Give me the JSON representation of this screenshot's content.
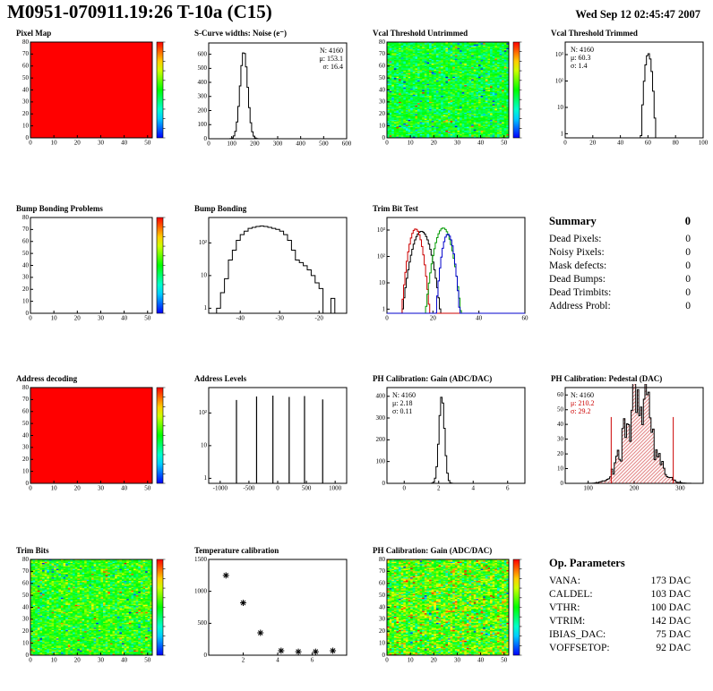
{
  "header": {
    "title": "M0951-070911.19:26 T-10a (C15)",
    "date": "Wed Sep 12 02:45:47 2007"
  },
  "chart_data": [
    {
      "title": "Pixel Map",
      "type": "heatmap",
      "fill": "uniform",
      "uniform_value": 1.0,
      "nx": 52,
      "ny": 80,
      "xlim": [
        0,
        52
      ],
      "ylim": [
        0,
        80
      ],
      "xticks": [
        0,
        10,
        20,
        30,
        40,
        50
      ],
      "yticks": [
        0,
        10,
        20,
        30,
        40,
        50,
        60,
        70,
        80
      ],
      "colorbar": true
    },
    {
      "title": "S-Curve widths: Noise (e⁻)",
      "type": "hist",
      "gauss": {
        "mu": 153.1,
        "sigma": 16.4,
        "peak": 620
      },
      "xlim": [
        0,
        600
      ],
      "xticks": [
        0,
        100,
        200,
        300,
        400,
        500,
        600
      ],
      "ylim": [
        0,
        680
      ],
      "yticks": [
        0,
        100,
        200,
        300,
        400,
        500,
        600
      ],
      "stats": {
        "pos": "right",
        "lines": [
          "N: 4160",
          "μ: 153.1",
          "σ: 16.4"
        ]
      }
    },
    {
      "title": "Vcal Threshold Untrimmed",
      "type": "heatmap",
      "fill": "noise",
      "noise_mean": 0.47,
      "noise_sd": 0.09,
      "outlier_cool": 0.035,
      "outlier_warm": 0.01,
      "nx": 52,
      "ny": 80,
      "xlim": [
        0,
        52
      ],
      "ylim": [
        0,
        80
      ],
      "xticks": [
        0,
        10,
        20,
        30,
        40,
        50
      ],
      "yticks": [
        0,
        10,
        20,
        30,
        40,
        50,
        60,
        70,
        80
      ],
      "colorbar": true
    },
    {
      "title": "Vcal Threshold Trimmed",
      "type": "hist",
      "ylog": true,
      "gauss": {
        "mu": 60.3,
        "sigma": 1.4,
        "peak": 1100
      },
      "xlim": [
        0,
        100
      ],
      "xticks": [
        0,
        20,
        40,
        60,
        80,
        100
      ],
      "ylim_log": [
        0.7,
        3000
      ],
      "yticks_log": [
        1,
        10,
        100,
        1000
      ],
      "stats": {
        "pos": "left",
        "lines": [
          "N: 4160",
          "μ: 60.3",
          "σ: 1.4"
        ]
      }
    },
    {
      "title": "Bump Bonding Problems",
      "type": "heatmap",
      "fill": "empty",
      "nx": 52,
      "ny": 80,
      "xlim": [
        0,
        52
      ],
      "ylim": [
        0,
        80
      ],
      "xticks": [
        0,
        10,
        20,
        30,
        40,
        50
      ],
      "yticks": [
        0,
        10,
        20,
        30,
        40,
        50,
        60,
        70,
        80
      ],
      "colorbar": true
    },
    {
      "title": "Bump Bonding",
      "type": "hist",
      "ylog": true,
      "bins_start": -46,
      "bin_width": 1,
      "counts": [
        1,
        3,
        8,
        30,
        60,
        120,
        180,
        230,
        280,
        300,
        320,
        330,
        320,
        300,
        280,
        260,
        230,
        180,
        120,
        60,
        30,
        25,
        20,
        15,
        10,
        6,
        4,
        0,
        0,
        2,
        0
      ],
      "xlim": [
        -48,
        -13
      ],
      "xticks": [
        -40,
        -30,
        -20
      ],
      "ylim_log": [
        0.7,
        600
      ],
      "yticks_log": [
        1,
        10,
        100
      ]
    },
    {
      "title": "Trim Bit Test",
      "type": "hist-multi",
      "ylog": true,
      "series": [
        {
          "color": "#000000",
          "gauss": {
            "mu": 15,
            "sigma": 2.2,
            "peak": 900
          }
        },
        {
          "color": "#cc0000",
          "gauss": {
            "mu": 12.5,
            "sigma": 1.6,
            "peak": 1100
          }
        },
        {
          "color": "#009900",
          "gauss": {
            "mu": 24.5,
            "sigma": 2.0,
            "peak": 1200
          }
        },
        {
          "color": "#0000cc",
          "gauss": {
            "mu": 26.5,
            "sigma": 1.4,
            "peak": 700
          }
        }
      ],
      "xlim": [
        0,
        60
      ],
      "xticks": [
        0,
        20,
        40,
        60
      ],
      "ylim_log": [
        0.7,
        3000
      ],
      "yticks_log": [
        1,
        10,
        100,
        1000
      ]
    },
    {
      "title": "Address decoding",
      "type": "heatmap",
      "fill": "uniform",
      "uniform_value": 1.0,
      "nx": 52,
      "ny": 80,
      "xlim": [
        0,
        52
      ],
      "ylim": [
        0,
        80
      ],
      "xticks": [
        0,
        10,
        20,
        30,
        40,
        50
      ],
      "yticks": [
        0,
        10,
        20,
        30,
        40,
        50,
        60,
        70,
        80
      ],
      "colorbar": true
    },
    {
      "title": "Address Levels",
      "type": "spikes",
      "ylog": true,
      "positions": [
        -717,
        -367,
        -83,
        200,
        467,
        783
      ],
      "heights": [
        250,
        320,
        340,
        310,
        330,
        260
      ],
      "xlim": [
        -1200,
        1200
      ],
      "xticks": [
        -1000,
        -500,
        0,
        500,
        1000
      ],
      "ylim_log": [
        0.7,
        600
      ],
      "yticks_log": [
        1,
        10,
        100
      ]
    },
    {
      "title": "PH Calibration: Gain (ADC/DAC)",
      "type": "hist",
      "gauss": {
        "mu": 2.18,
        "sigma": 0.11,
        "draw_sigma": 0.16,
        "peak": 400
      },
      "xlim": [
        -1,
        7
      ],
      "xticks": [
        0,
        2,
        4,
        6
      ],
      "ylim": [
        0,
        440
      ],
      "yticks": [
        0,
        100,
        200,
        300,
        400
      ],
      "stats": {
        "pos": "left",
        "lines": [
          "N: 4160",
          "μ: 2.18",
          "σ: 0.11"
        ]
      }
    },
    {
      "title": "PH Calibration: Pedestal (DAC)",
      "type": "hist",
      "noisy": true,
      "hatch": true,
      "gauss": {
        "mu": 210.2,
        "sigma": 29.2,
        "peak": 58
      },
      "cut_lines": [
        150,
        285
      ],
      "cut_color": "#cc0000",
      "cut_height": 45,
      "xlim": [
        50,
        350
      ],
      "xticks": [
        100,
        200,
        300
      ],
      "ylim": [
        0,
        65
      ],
      "yticks": [
        0,
        10,
        20,
        30,
        40,
        50,
        60
      ],
      "stats": {
        "pos": "left",
        "lines": [
          "N: 4160",
          "μ: 210.2",
          "σ: 29.2"
        ],
        "colors": [
          "#000000",
          "#cc0000",
          "#cc0000"
        ]
      }
    },
    {
      "title": "Trim Bits",
      "type": "heatmap",
      "fill": "noise",
      "noise_mean": 0.52,
      "noise_sd": 0.1,
      "outlier_cool": 0.02,
      "outlier_warm": 0.015,
      "nx": 52,
      "ny": 80,
      "xlim": [
        0,
        52
      ],
      "ylim": [
        0,
        80
      ],
      "xticks": [
        0,
        10,
        20,
        30,
        40,
        50
      ],
      "yticks": [
        0,
        10,
        20,
        30,
        40,
        50,
        60,
        70,
        80
      ],
      "colorbar": true
    },
    {
      "title": "Temperature calibration",
      "type": "scatter",
      "marker": "asterisk",
      "points": [
        [
          1,
          1250
        ],
        [
          2,
          820
        ],
        [
          3,
          350
        ],
        [
          4.2,
          70
        ],
        [
          5.2,
          55
        ],
        [
          6.2,
          55
        ],
        [
          7.2,
          70
        ]
      ],
      "xlim": [
        0,
        8
      ],
      "xticks": [
        2,
        4,
        6
      ],
      "ylim": [
        0,
        1500
      ],
      "yticks": [
        0,
        500,
        1000,
        1500
      ]
    },
    {
      "title": "PH Calibration: Gain (ADC/DAC)",
      "type": "heatmap",
      "fill": "noise",
      "noise_mean": 0.57,
      "noise_sd": 0.14,
      "outlier_cool": 0.01,
      "outlier_warm": 0.03,
      "nx": 52,
      "ny": 80,
      "xlim": [
        0,
        52
      ],
      "ylim": [
        0,
        80
      ],
      "xticks": [
        0,
        10,
        20,
        30,
        40,
        50
      ],
      "yticks": [
        0,
        10,
        20,
        30,
        40,
        50,
        60,
        70,
        80
      ],
      "colorbar": true
    }
  ],
  "summary": {
    "title": "Summary",
    "total": "0",
    "rows": [
      {
        "label": "Dead Pixels:",
        "value": "0"
      },
      {
        "label": "Noisy Pixels:",
        "value": "0"
      },
      {
        "label": "Mask defects:",
        "value": "0"
      },
      {
        "label": "Dead Bumps:",
        "value": "0"
      },
      {
        "label": "Dead Trimbits:",
        "value": "0"
      },
      {
        "label": "Address Probl:",
        "value": "0"
      }
    ]
  },
  "op_parameters": {
    "title": "Op. Parameters",
    "rows": [
      {
        "label": "VANA:",
        "value": "173 DAC"
      },
      {
        "label": "CALDEL:",
        "value": "103 DAC"
      },
      {
        "label": "VTHR:",
        "value": "100 DAC"
      },
      {
        "label": "VTRIM:",
        "value": "142 DAC"
      },
      {
        "label": "IBIAS_DAC:",
        "value": "75 DAC"
      },
      {
        "label": "VOFFSETOP:",
        "value": "92 DAC"
      }
    ]
  }
}
